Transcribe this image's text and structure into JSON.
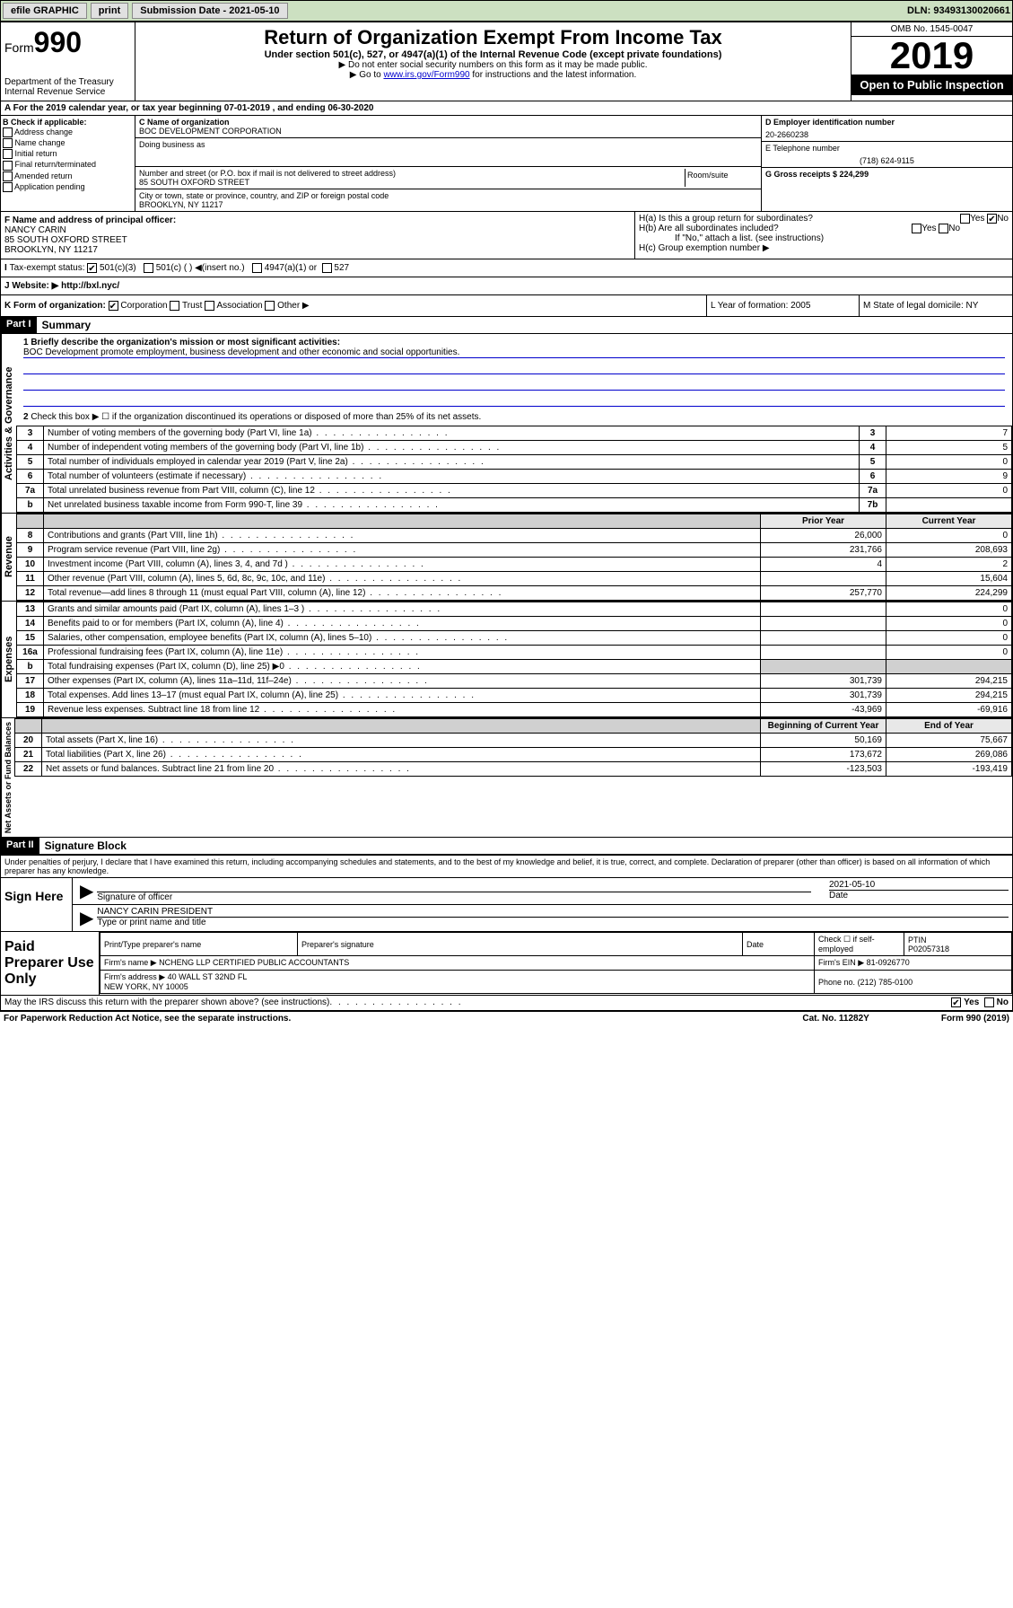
{
  "topbar": {
    "efile": "efile GRAPHIC",
    "print": "print",
    "subdate_label": "Submission Date - 2021-05-10",
    "dln": "DLN: 93493130020661"
  },
  "header": {
    "form_prefix": "Form",
    "form_num": "990",
    "dept": "Department of the Treasury\nInternal Revenue Service",
    "title": "Return of Organization Exempt From Income Tax",
    "subtitle": "Under section 501(c), 527, or 4947(a)(1) of the Internal Revenue Code (except private foundations)",
    "note1": "▶ Do not enter social security numbers on this form as it may be made public.",
    "note2_pre": "▶ Go to ",
    "note2_link": "www.irs.gov/Form990",
    "note2_post": " for instructions and the latest information.",
    "omb": "OMB No. 1545-0047",
    "year": "2019",
    "inspection": "Open to Public Inspection"
  },
  "period": {
    "text": "For the 2019 calendar year, or tax year beginning 07-01-2019    , and ending 06-30-2020"
  },
  "box_b": {
    "label": "B Check if applicable:",
    "items": [
      "Address change",
      "Name change",
      "Initial return",
      "Final return/terminated",
      "Amended return",
      "Application pending"
    ]
  },
  "box_c": {
    "name_label": "C Name of organization",
    "name": "BOC DEVELOPMENT CORPORATION",
    "dba_label": "Doing business as",
    "addr_label": "Number and street (or P.O. box if mail is not delivered to street address)",
    "room_label": "Room/suite",
    "addr": "85 SOUTH OXFORD STREET",
    "city_label": "City or town, state or province, country, and ZIP or foreign postal code",
    "city": "BROOKLYN, NY  11217"
  },
  "box_d": {
    "ein_label": "D Employer identification number",
    "ein": "20-2660238",
    "tel_label": "E Telephone number",
    "tel": "(718) 624-9115",
    "gross_label": "G Gross receipts $ 224,299"
  },
  "box_f": {
    "label": "F  Name and address of principal officer:",
    "name": "NANCY CARIN",
    "addr1": "85 SOUTH OXFORD STREET",
    "addr2": "BROOKLYN, NY  11217"
  },
  "box_h": {
    "ha": "H(a)  Is this a group return for subordinates?",
    "hb": "H(b)  Are all subordinates included?",
    "hb_note": "If \"No,\" attach a list. (see instructions)",
    "hc": "H(c)  Group exemption number ▶"
  },
  "tax_status": {
    "label": "Tax-exempt status:",
    "opt1": "501(c)(3)",
    "opt2": "501(c) (  ) ◀(insert no.)",
    "opt3": "4947(a)(1) or",
    "opt4": "527"
  },
  "website": {
    "label": "J   Website: ▶",
    "url": "http://bxl.nyc/"
  },
  "box_k": {
    "label": "K Form of organization:",
    "opts": [
      "Corporation",
      "Trust",
      "Association",
      "Other ▶"
    ],
    "l_label": "L Year of formation: 2005",
    "m_label": "M State of legal domicile: NY"
  },
  "part1": {
    "hdr": "Part I",
    "title": "Summary",
    "q1_label": "1 Briefly describe the organization's mission or most significant activities:",
    "q1_text": "BOC Development promote employment, business development and other economic and social opportunities.",
    "q2": "Check this box ▶ ☐  if the organization discontinued its operations or disposed of more than 25% of its net assets.",
    "rows": [
      {
        "n": "3",
        "d": "Number of voting members of the governing body (Part VI, line 1a)",
        "r": "3",
        "v": "7"
      },
      {
        "n": "4",
        "d": "Number of independent voting members of the governing body (Part VI, line 1b)",
        "r": "4",
        "v": "5"
      },
      {
        "n": "5",
        "d": "Total number of individuals employed in calendar year 2019 (Part V, line 2a)",
        "r": "5",
        "v": "0"
      },
      {
        "n": "6",
        "d": "Total number of volunteers (estimate if necessary)",
        "r": "6",
        "v": "9"
      },
      {
        "n": "7a",
        "d": "Total unrelated business revenue from Part VIII, column (C), line 12",
        "r": "7a",
        "v": "0"
      },
      {
        "n": "b",
        "d": "Net unrelated business taxable income from Form 990-T, line 39",
        "r": "7b",
        "v": ""
      }
    ],
    "col_hdr_prior": "Prior Year",
    "col_hdr_curr": "Current Year",
    "revenue_label": "Revenue",
    "revenue_rows": [
      {
        "n": "8",
        "d": "Contributions and grants (Part VIII, line 1h)",
        "p": "26,000",
        "c": "0"
      },
      {
        "n": "9",
        "d": "Program service revenue (Part VIII, line 2g)",
        "p": "231,766",
        "c": "208,693"
      },
      {
        "n": "10",
        "d": "Investment income (Part VIII, column (A), lines 3, 4, and 7d )",
        "p": "4",
        "c": "2"
      },
      {
        "n": "11",
        "d": "Other revenue (Part VIII, column (A), lines 5, 6d, 8c, 9c, 10c, and 11e)",
        "p": "",
        "c": "15,604"
      },
      {
        "n": "12",
        "d": "Total revenue—add lines 8 through 11 (must equal Part VIII, column (A), line 12)",
        "p": "257,770",
        "c": "224,299"
      }
    ],
    "expenses_label": "Expenses",
    "expenses_rows": [
      {
        "n": "13",
        "d": "Grants and similar amounts paid (Part IX, column (A), lines 1–3 )",
        "p": "",
        "c": "0"
      },
      {
        "n": "14",
        "d": "Benefits paid to or for members (Part IX, column (A), line 4)",
        "p": "",
        "c": "0"
      },
      {
        "n": "15",
        "d": "Salaries, other compensation, employee benefits (Part IX, column (A), lines 5–10)",
        "p": "",
        "c": "0"
      },
      {
        "n": "16a",
        "d": "Professional fundraising fees (Part IX, column (A), line 11e)",
        "p": "",
        "c": "0"
      },
      {
        "n": "b",
        "d": "Total fundraising expenses (Part IX, column (D), line 25) ▶0",
        "p": "SHADE",
        "c": "SHADE"
      },
      {
        "n": "17",
        "d": "Other expenses (Part IX, column (A), lines 11a–11d, 11f–24e)",
        "p": "301,739",
        "c": "294,215"
      },
      {
        "n": "18",
        "d": "Total expenses. Add lines 13–17 (must equal Part IX, column (A), line 25)",
        "p": "301,739",
        "c": "294,215"
      },
      {
        "n": "19",
        "d": "Revenue less expenses. Subtract line 18 from line 12",
        "p": "-43,969",
        "c": "-69,916"
      }
    ],
    "netassets_label": "Net Assets or Fund Balances",
    "col_hdr_beg": "Beginning of Current Year",
    "col_hdr_end": "End of Year",
    "netassets_rows": [
      {
        "n": "20",
        "d": "Total assets (Part X, line 16)",
        "p": "50,169",
        "c": "75,667"
      },
      {
        "n": "21",
        "d": "Total liabilities (Part X, line 26)",
        "p": "173,672",
        "c": "269,086"
      },
      {
        "n": "22",
        "d": "Net assets or fund balances. Subtract line 21 from line 20",
        "p": "-123,503",
        "c": "-193,419"
      }
    ],
    "activities_label": "Activities & Governance"
  },
  "part2": {
    "hdr": "Part II",
    "title": "Signature Block",
    "declaration": "Under penalties of perjury, I declare that I have examined this return, including accompanying schedules and statements, and to the best of my knowledge and belief, it is true, correct, and complete. Declaration of preparer (other than officer) is based on all information of which preparer has any knowledge.",
    "sign_here": "Sign Here",
    "sig_officer": "Signature of officer",
    "sig_date": "2021-05-10",
    "date_label": "Date",
    "name_title": "NANCY CARIN  PRESIDENT",
    "name_title_label": "Type or print name and title",
    "paid_prep": "Paid Preparer Use Only",
    "prep_name_label": "Print/Type preparer's name",
    "prep_sig_label": "Preparer's signature",
    "prep_date_label": "Date",
    "self_emp": "Check ☐ if self-employed",
    "ptin_label": "PTIN",
    "ptin": "P02057318",
    "firm_name_label": "Firm's name    ▶",
    "firm_name": "NCHENG LLP CERTIFIED PUBLIC ACCOUNTANTS",
    "firm_ein_label": "Firm's EIN ▶",
    "firm_ein": "81-0926770",
    "firm_addr_label": "Firm's address ▶",
    "firm_addr": "40 WALL ST 32ND FL\nNEW YORK, NY  10005",
    "firm_phone_label": "Phone no.",
    "firm_phone": "(212) 785-0100"
  },
  "discuss": "May the IRS discuss this return with the preparer shown above? (see instructions)",
  "footer": {
    "left": "For Paperwork Reduction Act Notice, see the separate instructions.",
    "mid": "Cat. No. 11282Y",
    "right": "Form 990 (2019)"
  },
  "labels": {
    "yes": "Yes",
    "no": "No"
  }
}
